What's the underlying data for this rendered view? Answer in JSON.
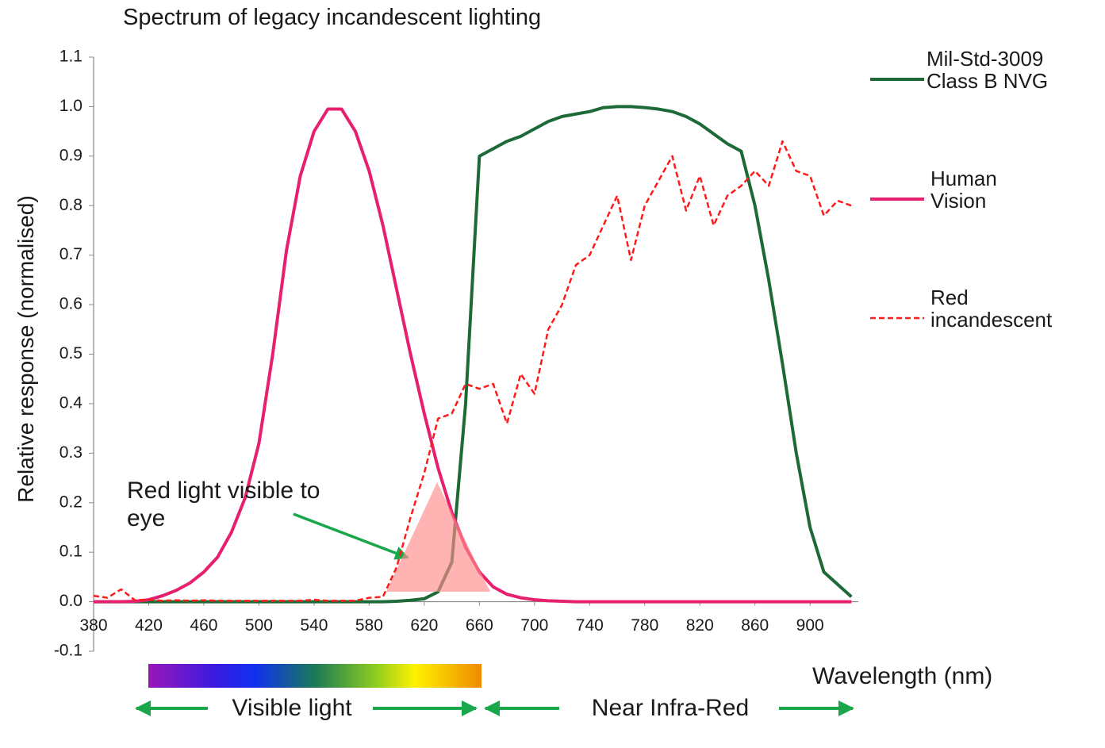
{
  "chart_data": {
    "type": "line",
    "title": "Spectrum of legacy incandescent lighting",
    "y_label": "Relative response (normalised)",
    "x_label": "Wavelength (nm)",
    "annotations": [
      "Red light visible to eye",
      "Visible light",
      "Near Infra-Red"
    ],
    "x": [
      380,
      390,
      400,
      410,
      420,
      430,
      440,
      450,
      460,
      470,
      480,
      490,
      500,
      510,
      520,
      530,
      540,
      550,
      560,
      570,
      580,
      590,
      600,
      610,
      620,
      630,
      640,
      650,
      660,
      670,
      680,
      690,
      700,
      710,
      720,
      730,
      740,
      750,
      760,
      770,
      780,
      790,
      800,
      810,
      820,
      830,
      840,
      850,
      860,
      870,
      880,
      890,
      900,
      910,
      920,
      930
    ],
    "series": [
      {
        "name": "Mil-Std-3009 Class B NVG",
        "color": "#1d6a38",
        "dash": false,
        "values": [
          0,
          0,
          0,
          0,
          0,
          0,
          0,
          0,
          0,
          0,
          0,
          0,
          0,
          0,
          0,
          0,
          0,
          0,
          0,
          0,
          0,
          0,
          0.001,
          0.003,
          0.006,
          0.02,
          0.08,
          0.4,
          0.9,
          0.915,
          0.93,
          0.94,
          0.955,
          0.97,
          0.98,
          0.985,
          0.99,
          0.998,
          1.0,
          1.0,
          0.998,
          0.995,
          0.99,
          0.98,
          0.965,
          0.945,
          0.925,
          0.91,
          0.8,
          0.65,
          0.48,
          0.3,
          0.15,
          0.06,
          0.035,
          0.01
        ]
      },
      {
        "name": "Human Vision",
        "color": "#e6206e",
        "dash": false,
        "values": [
          0,
          0,
          0,
          0.001,
          0.004,
          0.012,
          0.023,
          0.038,
          0.06,
          0.09,
          0.14,
          0.21,
          0.32,
          0.5,
          0.71,
          0.86,
          0.95,
          0.995,
          0.995,
          0.95,
          0.87,
          0.76,
          0.63,
          0.5,
          0.38,
          0.27,
          0.18,
          0.11,
          0.06,
          0.03,
          0.015,
          0.008,
          0.004,
          0.002,
          0.001,
          0,
          0,
          0,
          0,
          0,
          0,
          0,
          0,
          0,
          0,
          0,
          0,
          0,
          0,
          0,
          0,
          0,
          0,
          0,
          0,
          0
        ]
      },
      {
        "name": "Red incandescent",
        "color": "#ff1a1a",
        "dash": true,
        "values": [
          0.012,
          0.008,
          0.025,
          0.003,
          0.004,
          0.002,
          0.003,
          0.002,
          0.003,
          0.002,
          0.002,
          0.002,
          0.002,
          0.002,
          0.002,
          0.002,
          0.004,
          0.002,
          0.002,
          0.002,
          0.008,
          0.01,
          0.07,
          0.17,
          0.26,
          0.37,
          0.38,
          0.44,
          0.43,
          0.44,
          0.36,
          0.46,
          0.42,
          0.55,
          0.6,
          0.68,
          0.7,
          0.76,
          0.82,
          0.69,
          0.8,
          0.85,
          0.9,
          0.79,
          0.86,
          0.76,
          0.82,
          0.84,
          0.87,
          0.84,
          0.93,
          0.87,
          0.86,
          0.78,
          0.81,
          0.8
        ]
      }
    ],
    "xlim": [
      380,
      935
    ],
    "xticks": [
      380,
      420,
      460,
      500,
      540,
      580,
      620,
      660,
      700,
      740,
      780,
      820,
      860,
      900
    ],
    "ylim": [
      -0.1,
      1.1
    ],
    "yticks": [
      -0.1,
      {
        "value": 0,
        "label": "0.0"
      },
      0.1,
      0.2,
      0.3,
      0.4,
      0.5,
      0.6,
      0.7,
      0.8,
      0.9,
      {
        "value": 1,
        "label": "1.0"
      },
      1.1
    ],
    "grid": false,
    "legend": "right"
  }
}
